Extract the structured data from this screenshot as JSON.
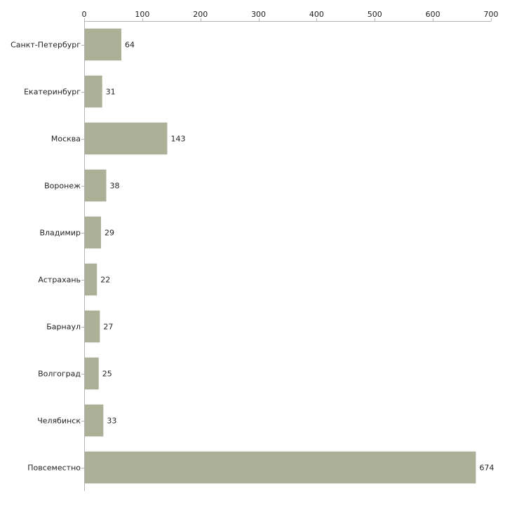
{
  "chart_data": {
    "type": "bar",
    "orientation": "horizontal",
    "title": "",
    "xlabel": "",
    "ylabel": "",
    "xlim": [
      0,
      700
    ],
    "x_ticks": [
      0,
      100,
      200,
      300,
      400,
      500,
      600,
      700
    ],
    "grid": false,
    "legend": "none",
    "bar_color": "#acb096",
    "categories": [
      "Санкт-Петербург",
      "Екатеринбург",
      "Москва",
      "Воронеж",
      "Владимир",
      "Астрахань",
      "Барнаул",
      "Волгоград",
      "Челябинск",
      "Повсеместно"
    ],
    "values": [
      64,
      31,
      143,
      38,
      29,
      22,
      27,
      25,
      33,
      674
    ]
  }
}
